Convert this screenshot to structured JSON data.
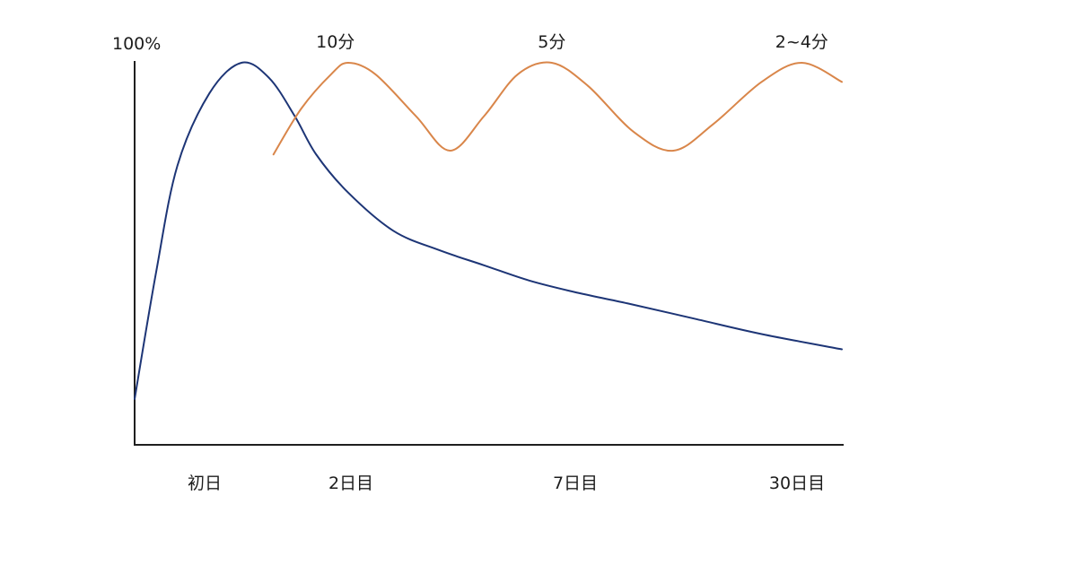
{
  "chart_data": {
    "type": "line",
    "ylabel": "100%",
    "categories": [
      "初日",
      "2日目",
      "7日目",
      "30日目"
    ],
    "series": [
      {
        "color": "#1d3576",
        "x": [
          0,
          0.1,
          0.2,
          0.35,
          0.5,
          0.63,
          0.75,
          0.85,
          1.0,
          1.2,
          1.4,
          1.6,
          1.8,
          2.0,
          2.2,
          2.45,
          2.7,
          3.0
        ],
        "y": [
          12,
          45,
          73,
          92,
          100,
          96,
          86,
          76,
          66,
          56,
          51,
          47,
          43,
          40,
          37,
          33,
          29,
          25
        ]
      },
      {
        "color": "#d9864a",
        "x": [
          0.65,
          0.78,
          0.92,
          1.0,
          1.12,
          1.3,
          1.45,
          1.6,
          1.75,
          1.9,
          2.05,
          2.22,
          2.37,
          2.52,
          2.7,
          2.85,
          3.0
        ],
        "y": [
          76,
          88,
          97,
          100,
          97,
          86,
          77,
          86,
          97,
          100,
          94,
          82,
          77,
          84,
          95,
          100,
          95
        ]
      }
    ],
    "annotations": [
      {
        "text": "10分",
        "x": 0.94
      },
      {
        "text": "5分",
        "x": 1.9
      },
      {
        "text": "2~4分",
        "x": 2.85
      }
    ],
    "xlim": [
      0,
      3.0
    ],
    "ylim": [
      0,
      100
    ],
    "grid": false,
    "legend": "none"
  }
}
